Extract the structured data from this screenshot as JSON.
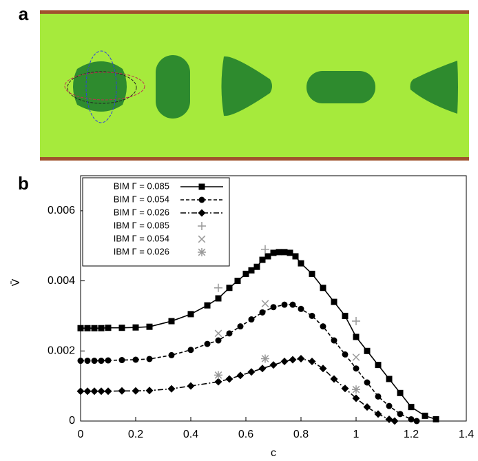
{
  "panel_a": {
    "label": "a"
  },
  "chart_data": {
    "type": "line",
    "panel_label": "b",
    "xlabel": "c",
    "ylabel": "V̄",
    "xlim": [
      0,
      1.4
    ],
    "xticks": [
      0,
      0.2,
      0.4,
      0.6,
      0.8,
      1,
      1.2,
      1.4
    ],
    "ylim": [
      0,
      0.007
    ],
    "yticks": [
      0,
      0.002,
      0.004,
      0.006
    ],
    "legend": "upper left",
    "series": [
      {
        "name": "BIM Γ = 0.085",
        "color": "#000000",
        "line": "solid",
        "marker": "square",
        "x": [
          0,
          0.025,
          0.05,
          0.075,
          0.1,
          0.15,
          0.2,
          0.25,
          0.33,
          0.4,
          0.46,
          0.5,
          0.54,
          0.57,
          0.6,
          0.62,
          0.64,
          0.66,
          0.68,
          0.7,
          0.72,
          0.74,
          0.76,
          0.78,
          0.8,
          0.84,
          0.88,
          0.92,
          0.96,
          1.0,
          1.04,
          1.08,
          1.12,
          1.16,
          1.2,
          1.25,
          1.29
        ],
        "values": [
          0.00265,
          0.00265,
          0.00265,
          0.00265,
          0.00266,
          0.00266,
          0.00267,
          0.00269,
          0.00285,
          0.00305,
          0.0033,
          0.0035,
          0.0038,
          0.004,
          0.0042,
          0.0043,
          0.0044,
          0.0046,
          0.0047,
          0.0048,
          0.00482,
          0.00482,
          0.0048,
          0.0047,
          0.0045,
          0.0042,
          0.0038,
          0.0034,
          0.003,
          0.0024,
          0.002,
          0.0016,
          0.0012,
          0.0008,
          0.0004,
          0.00015,
          5e-05
        ]
      },
      {
        "name": "BIM Γ = 0.054",
        "color": "#000000",
        "line": "dashed",
        "marker": "circle",
        "x": [
          0,
          0.025,
          0.05,
          0.075,
          0.1,
          0.15,
          0.2,
          0.25,
          0.33,
          0.4,
          0.46,
          0.5,
          0.54,
          0.58,
          0.62,
          0.66,
          0.7,
          0.74,
          0.77,
          0.8,
          0.84,
          0.88,
          0.92,
          0.96,
          1.0,
          1.04,
          1.08,
          1.12,
          1.16,
          1.2,
          1.22
        ],
        "values": [
          0.00172,
          0.00172,
          0.00172,
          0.00172,
          0.00173,
          0.00174,
          0.00175,
          0.00177,
          0.00188,
          0.00203,
          0.0022,
          0.0023,
          0.0025,
          0.0027,
          0.0029,
          0.0031,
          0.00325,
          0.00332,
          0.00332,
          0.0032,
          0.003,
          0.0027,
          0.0023,
          0.0019,
          0.0015,
          0.0011,
          0.0007,
          0.00043,
          0.0002,
          5e-05,
          0
        ]
      },
      {
        "name": "BIM Γ = 0.026",
        "color": "#000000",
        "line": "dashdot",
        "marker": "diamond",
        "x": [
          0,
          0.025,
          0.05,
          0.075,
          0.1,
          0.15,
          0.2,
          0.25,
          0.33,
          0.4,
          0.5,
          0.54,
          0.58,
          0.62,
          0.66,
          0.7,
          0.74,
          0.77,
          0.8,
          0.84,
          0.88,
          0.92,
          0.96,
          1.0,
          1.04,
          1.08,
          1.12,
          1.14
        ],
        "values": [
          0.00085,
          0.00085,
          0.00085,
          0.00085,
          0.00085,
          0.00086,
          0.00086,
          0.00087,
          0.00092,
          0.001,
          0.00112,
          0.0012,
          0.0013,
          0.0014,
          0.0015,
          0.0016,
          0.0017,
          0.00175,
          0.00178,
          0.0017,
          0.0015,
          0.0012,
          0.00093,
          0.00065,
          0.0004,
          0.0002,
          5e-05,
          0
        ]
      },
      {
        "name": "IBM Γ = 0.085",
        "color": "#999999",
        "line": "none",
        "marker": "plus",
        "x": [
          0.5,
          0.67,
          1.0
        ],
        "values": [
          0.0038,
          0.0049,
          0.00285
        ]
      },
      {
        "name": "IBM Γ = 0.054",
        "color": "#999999",
        "line": "none",
        "marker": "cross",
        "x": [
          0.5,
          0.67,
          1.0
        ],
        "values": [
          0.0025,
          0.00335,
          0.00182
        ]
      },
      {
        "name": "IBM Γ = 0.026",
        "color": "#999999",
        "line": "none",
        "marker": "star",
        "x": [
          0.5,
          0.67,
          1.0
        ],
        "values": [
          0.00131,
          0.00178,
          0.0009
        ]
      }
    ]
  }
}
